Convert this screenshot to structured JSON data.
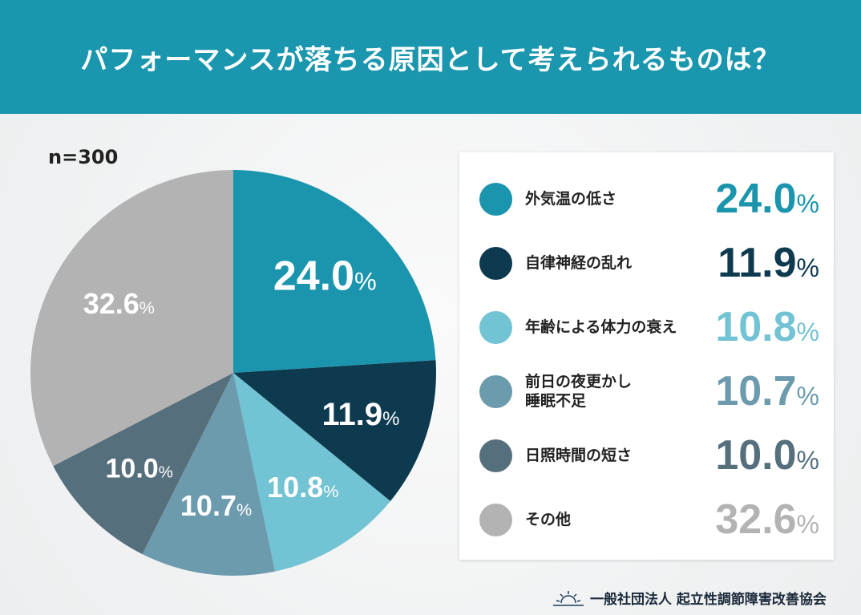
{
  "header": {
    "title": "パフォーマンスが落ちる原因として考えられるものは？"
  },
  "sample": "n=300",
  "footer": {
    "org": "一般社団法人 起立性調節障害改善協会",
    "logo_icon": "sunrise-icon"
  },
  "chart_data": {
    "type": "pie",
    "title": "パフォーマンスが落ちる原因として考えられるものは？",
    "unit": "%",
    "start": "top, clockwise",
    "slices": [
      {
        "label": "外気温の低さ",
        "value": 24.0,
        "display": "24.0",
        "color": "#1a95ad"
      },
      {
        "label": "自律神経の乱れ",
        "value": 11.9,
        "display": "11.9",
        "color": "#0e3a50"
      },
      {
        "label": "年齢による体力の衰え",
        "value": 10.8,
        "display": "10.8",
        "color": "#72c3d3"
      },
      {
        "label": "前日の夜更かし\n睡眠不足",
        "value": 10.7,
        "display": "10.7",
        "color": "#6d9bae"
      },
      {
        "label": "日照時間の短さ",
        "value": 10.0,
        "display": "10.0",
        "color": "#566f7d"
      },
      {
        "label": "その他",
        "value": 32.6,
        "display": "32.6",
        "color": "#b3b3b3"
      }
    ]
  }
}
